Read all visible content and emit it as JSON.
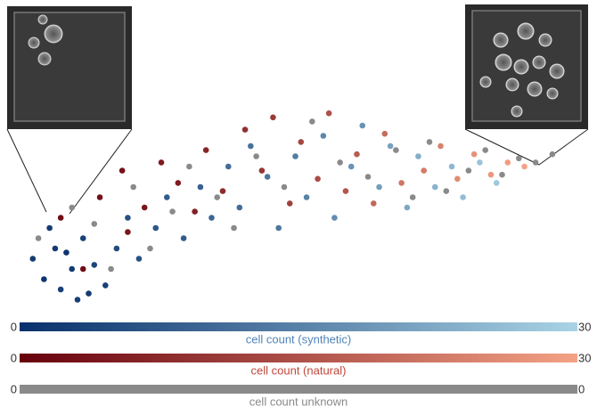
{
  "chart_data": {
    "type": "scatter",
    "xlim": [
      0,
      100
    ],
    "ylim": [
      0,
      100
    ],
    "series": [
      {
        "name": "cell count (synthetic)",
        "colorbar": 0,
        "x": [
          3,
          5,
          7,
          8,
          10,
          11,
          12,
          14,
          6,
          16,
          18,
          20,
          22,
          25,
          27,
          30,
          33,
          35,
          38,
          40,
          42,
          45,
          47,
          50,
          52,
          55,
          57,
          60,
          62,
          65,
          67,
          70,
          72,
          75,
          78,
          80,
          83,
          86,
          9,
          13
        ],
        "y": [
          25,
          15,
          30,
          10,
          20,
          5,
          35,
          22,
          40,
          12,
          30,
          45,
          25,
          40,
          55,
          35,
          60,
          45,
          70,
          50,
          80,
          65,
          40,
          75,
          55,
          85,
          45,
          70,
          90,
          60,
          80,
          50,
          75,
          60,
          70,
          55,
          72,
          62,
          28,
          8
        ],
        "values": [
          2,
          1,
          2,
          3,
          2,
          3,
          3,
          4,
          2,
          3,
          5,
          6,
          6,
          7,
          8,
          8,
          9,
          10,
          11,
          11,
          12,
          13,
          13,
          14,
          15,
          16,
          17,
          18,
          18,
          20,
          21,
          22,
          23,
          24,
          25,
          26,
          27,
          28,
          1,
          2
        ]
      },
      {
        "name": "cell count (natural)",
        "colorbar": 1,
        "x": [
          8,
          15,
          19,
          23,
          26,
          29,
          32,
          34,
          37,
          41,
          44,
          46,
          49,
          51,
          54,
          56,
          59,
          61,
          64,
          66,
          69,
          73,
          76,
          79,
          82,
          85,
          88,
          91,
          12,
          20
        ],
        "y": [
          45,
          55,
          68,
          50,
          72,
          62,
          48,
          78,
          58,
          88,
          68,
          94,
          52,
          82,
          64,
          96,
          58,
          76,
          52,
          86,
          62,
          68,
          80,
          64,
          76,
          66,
          72,
          70,
          20,
          38
        ],
        "values": [
          2,
          3,
          3,
          4,
          5,
          5,
          6,
          7,
          8,
          9,
          10,
          11,
          12,
          13,
          14,
          15,
          16,
          17,
          19,
          20,
          22,
          23,
          24,
          26,
          27,
          28,
          29,
          30,
          2,
          4
        ]
      },
      {
        "name": "cell count unknown",
        "colorbar": 2,
        "x": [
          4,
          10,
          14,
          21,
          24,
          28,
          31,
          36,
          39,
          43,
          48,
          53,
          58,
          63,
          68,
          71,
          74,
          77,
          81,
          84,
          87,
          90,
          93,
          96,
          17
        ],
        "y": [
          35,
          50,
          42,
          60,
          30,
          48,
          70,
          55,
          40,
          75,
          60,
          92,
          72,
          65,
          78,
          55,
          82,
          58,
          68,
          78,
          66,
          74,
          72,
          76,
          20
        ]
      }
    ],
    "colorbars": [
      {
        "label": "cell count (synthetic)",
        "min": 0,
        "max": 30,
        "colors": [
          "#08306b",
          "#a9d3e5"
        ],
        "label_color": "#4f84b8"
      },
      {
        "label": "cell count (natural)",
        "min": 0,
        "max": 30,
        "colors": [
          "#67000d",
          "#f4a285"
        ],
        "label_color": "#c0473a"
      },
      {
        "label": "cell count unknown",
        "min": 0,
        "max": 0,
        "colors": [
          "#8a8a8a",
          "#8a8a8a"
        ],
        "label_color": "#8a8a8a"
      }
    ]
  }
}
